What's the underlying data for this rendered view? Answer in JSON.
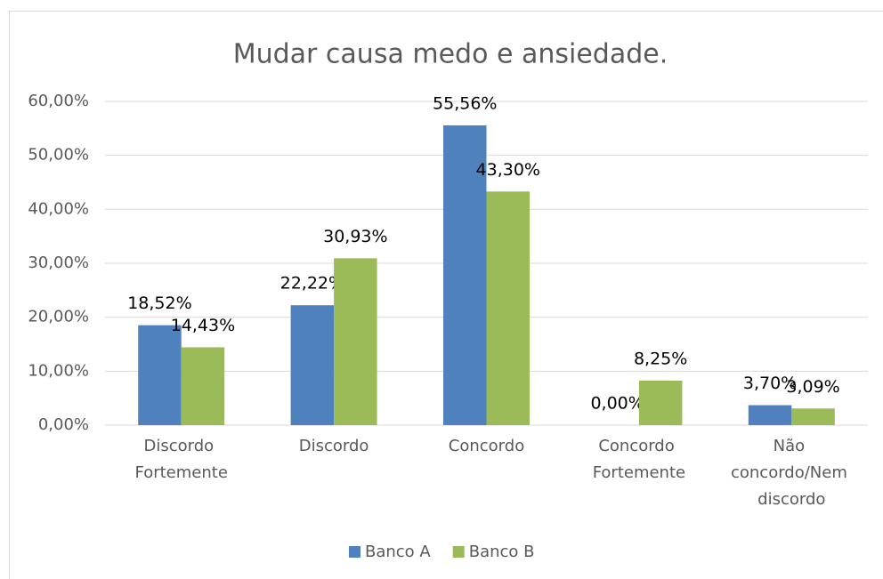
{
  "chart_data": {
    "type": "bar",
    "title": "Mudar causa medo e ansiedade.",
    "categories": [
      "Discordo Fortemente",
      "Discordo",
      "Concordo",
      "Concordo Fortemente",
      "Não concordo/Nem discordo"
    ],
    "series": [
      {
        "name": "Banco A",
        "color": "#4f81bd",
        "values": [
          18.52,
          22.22,
          55.56,
          0,
          3.7
        ],
        "value_labels": [
          "18,52%",
          "22,22%",
          "55,56%",
          "0,00%",
          "3,70%"
        ]
      },
      {
        "name": "Banco B",
        "color": "#9bbb59",
        "values": [
          14.43,
          30.93,
          43.3,
          8.25,
          3.09
        ],
        "value_labels": [
          "14,43%",
          "30,93%",
          "43,30%",
          "8,25%",
          "3,09%"
        ]
      }
    ],
    "ylim": [
      0,
      60
    ],
    "yticks": [
      {
        "value": 0,
        "label": "0,00%"
      },
      {
        "value": 10,
        "label": "10,00%"
      },
      {
        "value": 20,
        "label": "20,00%"
      },
      {
        "value": 30,
        "label": "30,00%"
      },
      {
        "value": 40,
        "label": "40,00%"
      },
      {
        "value": 50,
        "label": "50,00%"
      },
      {
        "value": 60,
        "label": "60,00%"
      }
    ],
    "grid": true,
    "legend": "bottom"
  }
}
